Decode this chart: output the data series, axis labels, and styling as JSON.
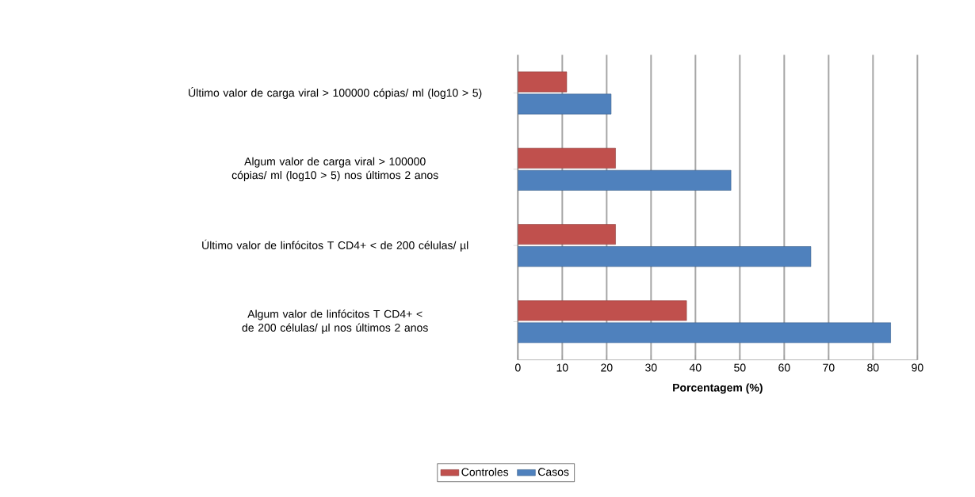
{
  "chart_data": {
    "type": "bar",
    "orientation": "horizontal",
    "xlabel": "Porcentagem (%)",
    "categories": [
      "Último valor de carga viral > 100000 cópias/ ml (log10 > 5)",
      "Algum valor de carga viral > 100000 cópias/ ml (log10 > 5) nos últimos 2 anos",
      "Último valor de linfócitos T CD4+ < de 200 células/ µl",
      "Algum valor de linfócitos T CD4+ < de 200 células/ µl nos últimos 2 anos"
    ],
    "series": [
      {
        "name": "Controles",
        "color": "#c0504d",
        "values": [
          11,
          22,
          22,
          38
        ]
      },
      {
        "name": "Casos",
        "color": "#4f81bd",
        "values": [
          21,
          48,
          66,
          84
        ]
      }
    ],
    "xlim": [
      0,
      90
    ],
    "xticks": [
      0,
      10,
      20,
      30,
      40,
      50,
      60,
      70,
      80,
      90
    ],
    "grid": "x",
    "legend": "bottom"
  }
}
